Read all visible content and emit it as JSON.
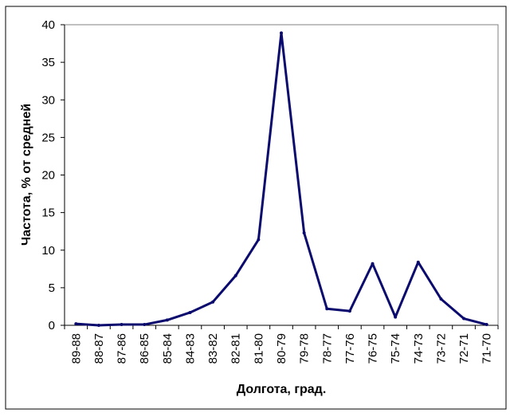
{
  "chart_data": {
    "type": "line",
    "title": "",
    "xlabel": "Долгота, град.",
    "ylabel": "Частота, % от средней",
    "ylim": [
      0,
      40
    ],
    "yticks": [
      0,
      5,
      10,
      15,
      20,
      25,
      30,
      35,
      40
    ],
    "grid": false,
    "legend": "none",
    "categories": [
      "89-88",
      "88-87",
      "87-86",
      "86-85",
      "85-84",
      "84-83",
      "83-82",
      "82-81",
      "81-80",
      "80-79",
      "79-78",
      "78-77",
      "77-76",
      "76-75",
      "75-74",
      "74-73",
      "73-72",
      "72-71",
      "71-70"
    ],
    "series": [
      {
        "color": "#0a0a6e",
        "values": [
          0.2,
          0.0,
          0.1,
          0.1,
          0.7,
          1.7,
          3.1,
          6.6,
          11.4,
          38.9,
          12.3,
          2.2,
          1.9,
          8.2,
          1.1,
          8.4,
          3.5,
          0.9,
          0.1
        ]
      }
    ]
  }
}
